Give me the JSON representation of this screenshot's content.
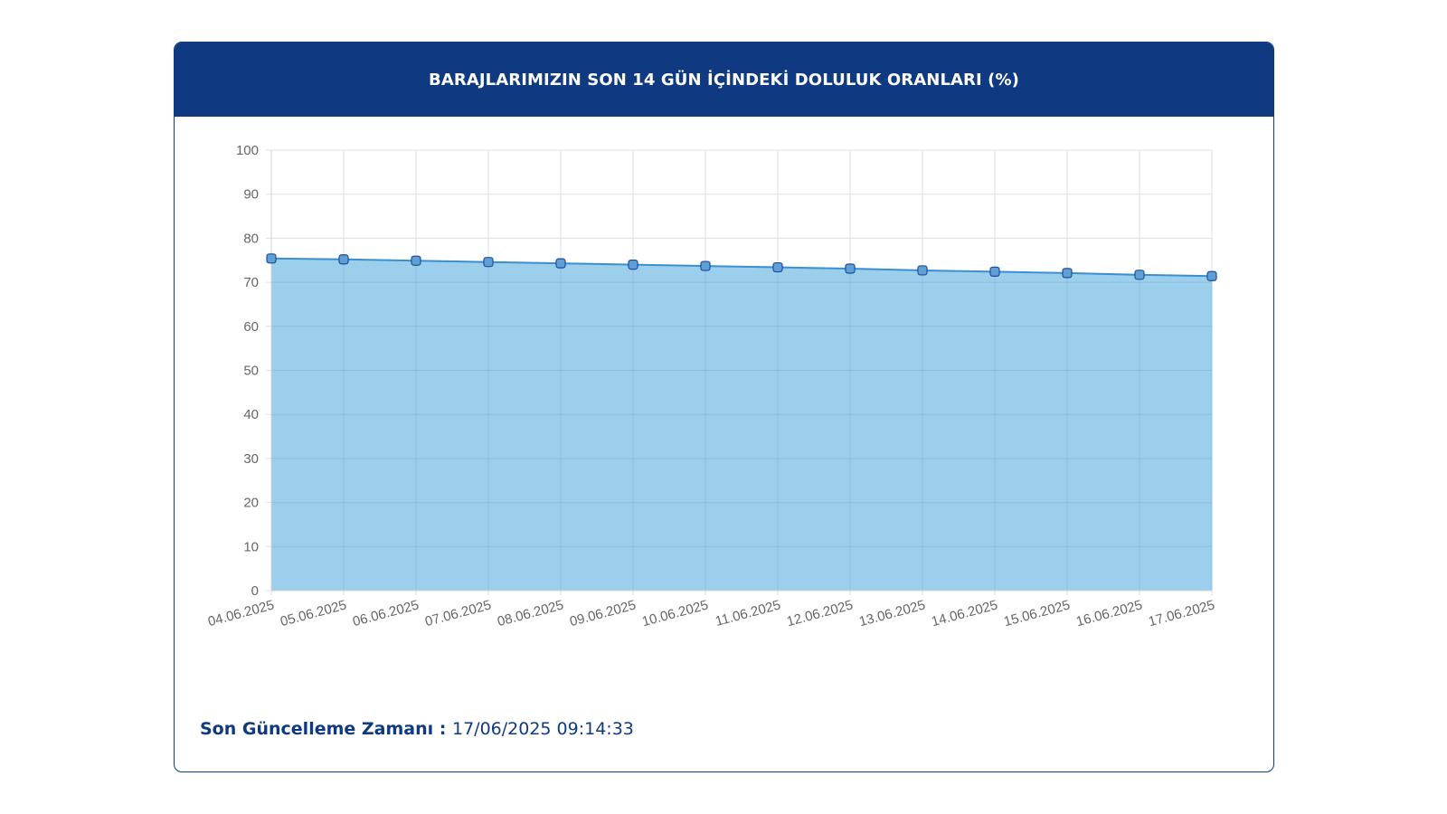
{
  "card": {
    "title": "BARAJLARIMIZIN SON 14 GÜN İÇİNDEKİ DOLULUK ORANLARI (%)"
  },
  "footer": {
    "label": "Son Güncelleme Zamanı : ",
    "value": "17/06/2025 09:14:33"
  },
  "colors": {
    "header": "#0f3a82",
    "area_fill": "#9ccfec",
    "line": "#3a8fd0",
    "point_fill": "#5e9fd6",
    "point_stroke": "#1f4f9a",
    "grid": "#e0e0e0"
  },
  "chart_data": {
    "type": "area",
    "title": "",
    "xlabel": "",
    "ylabel": "",
    "x": [
      "04.06.2025",
      "05.06.2025",
      "06.06.2025",
      "07.06.2025",
      "08.06.2025",
      "09.06.2025",
      "10.06.2025",
      "11.06.2025",
      "12.06.2025",
      "13.06.2025",
      "14.06.2025",
      "15.06.2025",
      "16.06.2025",
      "17.06.2025"
    ],
    "values": [
      75.4,
      75.2,
      74.9,
      74.6,
      74.3,
      74.0,
      73.7,
      73.4,
      73.1,
      72.7,
      72.4,
      72.1,
      71.7,
      71.4
    ],
    "ylim": [
      0,
      100
    ],
    "yticks": [
      0,
      10,
      20,
      30,
      40,
      50,
      60,
      70,
      80,
      90,
      100
    ],
    "grid": true,
    "legend": "none"
  }
}
